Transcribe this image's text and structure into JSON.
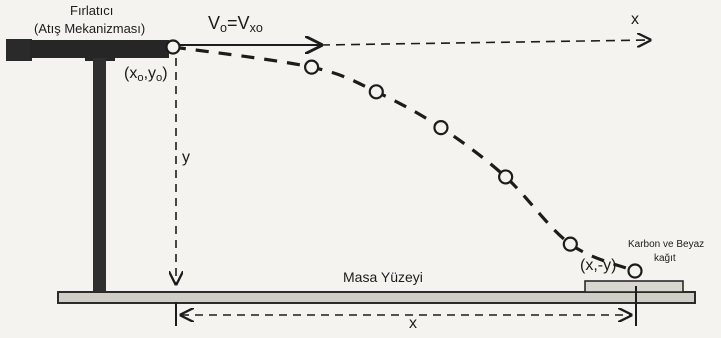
{
  "launcher": {
    "title": "Fırlatıcı",
    "mechanism": "(Atış Mekanizması)"
  },
  "velocity": {
    "v": "V",
    "v_sub": "o",
    "eq": "=V",
    "vx_sub": "xo"
  },
  "start_point": {
    "open": "(x",
    "sub1": "o",
    "comma": ",y",
    "sub2": "o",
    "close": ")"
  },
  "vertical_label": "y",
  "horizontal_distance_label": "x",
  "x_axis_label": "x",
  "table_surface": "Masa Yüzeyi",
  "landing_point": "(x,-y)",
  "paper": {
    "line1": "Karbon ve Beyaz",
    "line2": "kağıt"
  },
  "trajectory_points": [
    {
      "x": 0.0,
      "y": 0.0
    },
    {
      "x": 0.3,
      "y": -0.09
    },
    {
      "x": 0.44,
      "y": -0.2
    },
    {
      "x": 0.58,
      "y": -0.36
    },
    {
      "x": 0.72,
      "y": -0.58
    },
    {
      "x": 0.86,
      "y": -0.88
    },
    {
      "x": 1.0,
      "y": -1.0
    }
  ],
  "colors": {
    "ink": "#1c1c1c",
    "paper": "#f4f3ef"
  }
}
